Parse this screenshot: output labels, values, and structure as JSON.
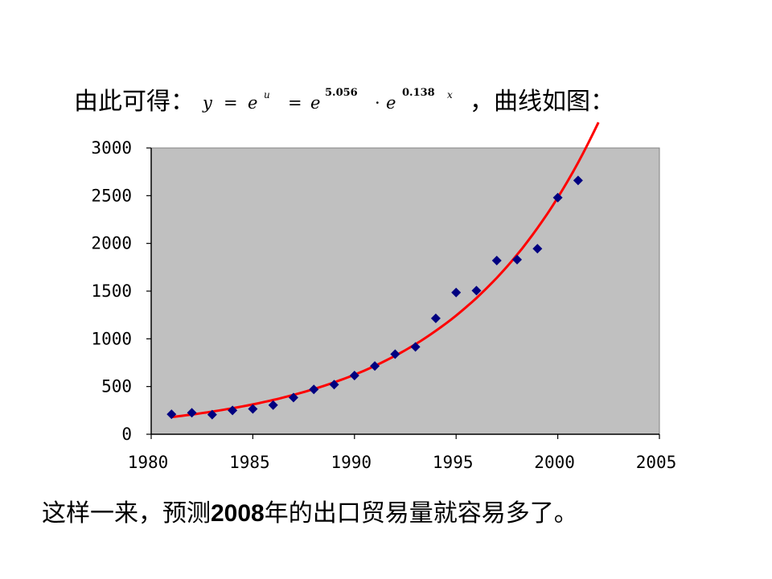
{
  "heading": {
    "prefix": "由此可得：",
    "formula": {
      "y": "y",
      "eq1": "=",
      "e1": "e",
      "u": "u",
      "eq2": "=",
      "e2": "e",
      "exp1": "5.056",
      "dot": "·",
      "e3": "e",
      "exp2": "0.138",
      "x": "x"
    },
    "suffix": "，曲线如图："
  },
  "footer": {
    "part1": "这样一来，预测",
    "year": "2008",
    "part2": "年的出口贸易量就容易多了。"
  },
  "chart_data": {
    "type": "scatter",
    "xlim": [
      1980,
      2005
    ],
    "ylim": [
      0,
      3000
    ],
    "xticks": [
      "1980",
      "1985",
      "1990",
      "1995",
      "2000",
      "2005"
    ],
    "yticks": [
      "0",
      "500",
      "1000",
      "1500",
      "2000",
      "2500",
      "3000"
    ],
    "grid": false,
    "series": [
      {
        "kind": "scatter",
        "color": "#000080",
        "x": [
          1981,
          1982,
          1983,
          1984,
          1985,
          1986,
          1987,
          1988,
          1989,
          1990,
          1991,
          1992,
          1993,
          1994,
          1995,
          1996,
          1997,
          1998,
          1999,
          2000,
          2001
        ],
        "y": [
          210,
          225,
          205,
          250,
          265,
          305,
          385,
          470,
          520,
          615,
          715,
          840,
          915,
          1215,
          1485,
          1505,
          1820,
          1830,
          1945,
          2480,
          2660
        ]
      },
      {
        "kind": "line",
        "color": "#ff0000",
        "formula": "y = e^5.056 · e^(0.138x)",
        "x_start": 1981,
        "x_end": 2002,
        "a": 156.96,
        "b": 0.138
      }
    ],
    "plot_background": "#c0c0c0"
  }
}
